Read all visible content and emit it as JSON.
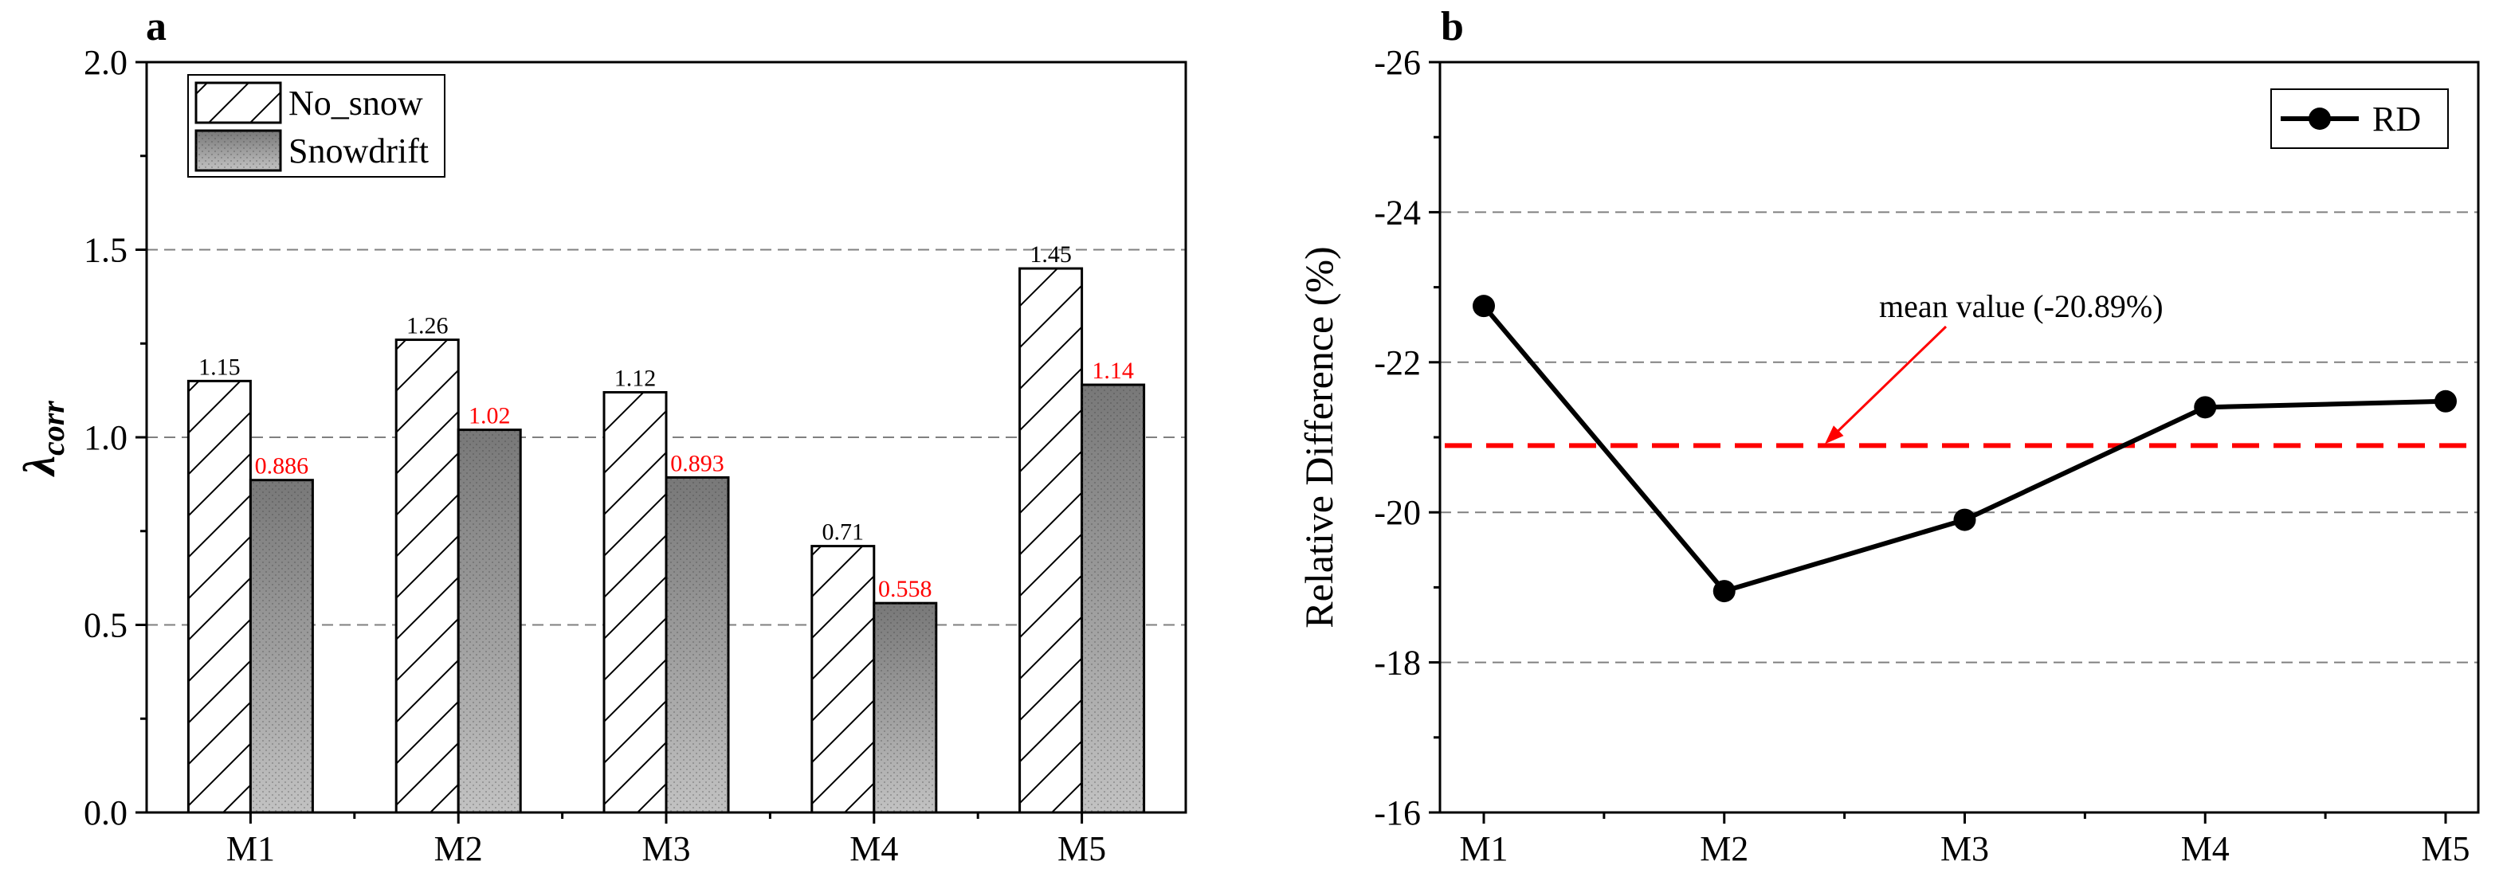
{
  "chart_data": [
    {
      "panel_label": "a",
      "type": "bar",
      "categories": [
        "M1",
        "M2",
        "M3",
        "M4",
        "M5"
      ],
      "series": [
        {
          "name": "No_snow",
          "values": [
            1.15,
            1.26,
            1.12,
            0.71,
            1.45
          ],
          "labels": [
            "1.15",
            "1.26",
            "1.12",
            "0.71",
            "1.45"
          ],
          "label_color": "#000000",
          "pattern": "diagonal-hatch"
        },
        {
          "name": "Snowdrift",
          "values": [
            0.886,
            1.02,
            0.893,
            0.558,
            1.14
          ],
          "labels": [
            "0.886",
            "1.02",
            "0.893",
            "0.558",
            "1.14"
          ],
          "label_color": "#ff0000",
          "pattern": "gray-gradient-dots"
        }
      ],
      "ylabel_main": "λ",
      "ylabel_sub": "corr",
      "xlabel": "",
      "ylim": [
        0.0,
        2.0
      ],
      "yticks": [
        0.0,
        0.5,
        1.0,
        1.5,
        2.0
      ],
      "ytick_labels": [
        "0.0",
        "0.5",
        "1.0",
        "1.5",
        "2.0"
      ],
      "gridlines": [
        0.5,
        1.0,
        1.5
      ],
      "legend_position": "top-left"
    },
    {
      "panel_label": "b",
      "type": "line",
      "categories": [
        "M1",
        "M2",
        "M3",
        "M4",
        "M5"
      ],
      "series": [
        {
          "name": "RD",
          "values": [
            -22.75,
            -18.95,
            -19.9,
            -21.4,
            -21.48
          ],
          "color": "#000000"
        }
      ],
      "ylabel": "Relative Difference (%)",
      "xlabel": "",
      "ylim": [
        -16,
        -26
      ],
      "yticks": [
        -16,
        -18,
        -20,
        -22,
        -24,
        -26
      ],
      "ytick_labels": [
        "-16",
        "-18",
        "-20",
        "-22",
        "-24",
        "-26"
      ],
      "gridlines": [
        -18,
        -20,
        -22,
        -24
      ],
      "reference_line": {
        "value": -20.89,
        "color": "#ff0000",
        "style": "dashed"
      },
      "annotation": {
        "text": "mean value (-20.89%)",
        "color": "#ff0000",
        "points_to": -20.89
      },
      "legend_position": "top-right"
    }
  ]
}
